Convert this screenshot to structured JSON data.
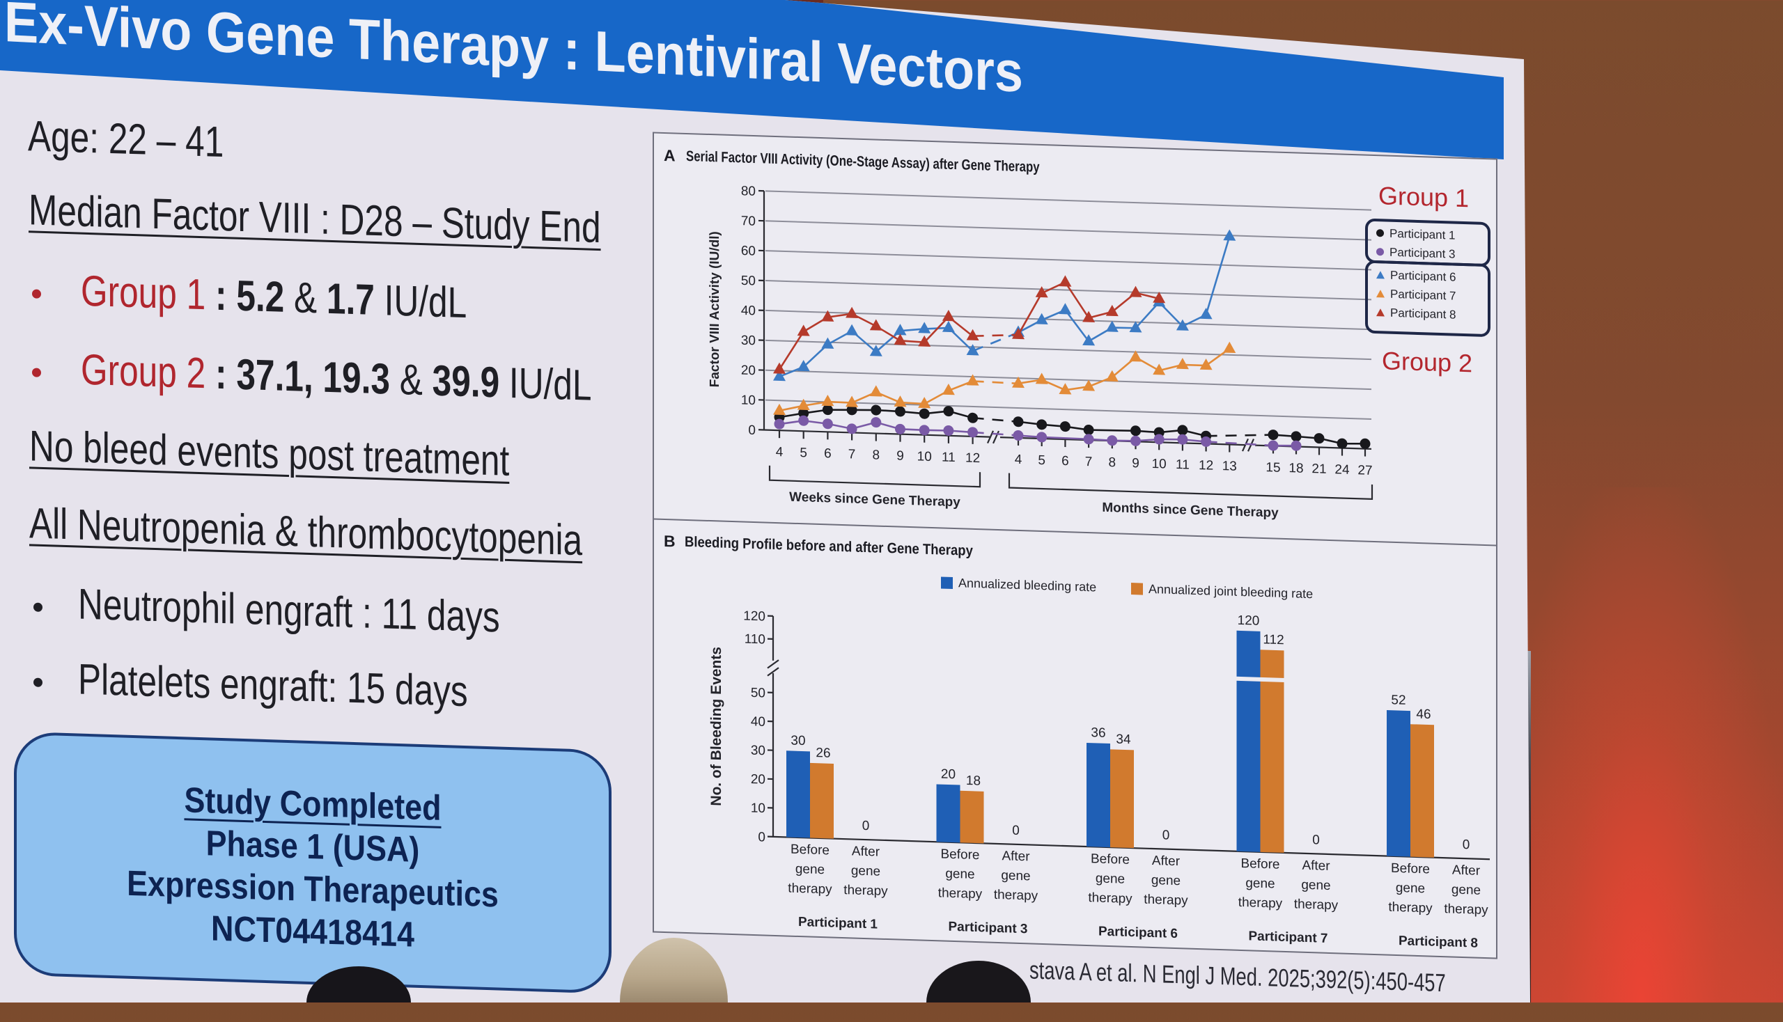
{
  "slide": {
    "title": "Ex-Vivo Gene Therapy : Lentiviral Vectors",
    "age": "Age: 22 – 41",
    "median_heading": "Median Factor VIII : D28 – Study End",
    "group1": {
      "label": "Group 1",
      "sep": " : ",
      "v1": "5.2",
      "amp": " & ",
      "v2": "1.7",
      "unit": " IU/dL"
    },
    "group2": {
      "label": "Group 2",
      "sep": " : ",
      "v1": "37.1,",
      "gap": " ",
      "v2": "19.3",
      "amp": " & ",
      "v3": "39.9",
      "unit": " IU/dL"
    },
    "no_bleed": "No bleed events post treatment",
    "cytopenia_heading": "All Neutropenia & thrombocytopenia",
    "neutrophil": "Neutrophil engraft : 11 days",
    "platelets": "Platelets engraft: 15 days",
    "status_box": {
      "line1": "Study Completed",
      "line2": "Phase 1 (USA)",
      "line3": "Expression Therapeutics",
      "line4": "NCT04418414"
    },
    "citation": "stava A et al. N Engl J Med. 2025;392(5):450-457",
    "colors": {
      "title_bar": "#1767c8",
      "group_label": "#b0262e",
      "status_box": "#8fc1ef"
    }
  },
  "chart_data": [
    {
      "type": "line",
      "panel": "A",
      "title": "Serial Factor VIII Activity (One-Stage Assay) after Gene Therapy",
      "ylabel": "Factor VIII Activity (IU/dl)",
      "ylim": [
        0,
        80
      ],
      "yticks": [
        0,
        10,
        20,
        30,
        40,
        50,
        60,
        70,
        80
      ],
      "grid": true,
      "x_weeks": [
        "4",
        "5",
        "6",
        "7",
        "8",
        "9",
        "10",
        "11",
        "12"
      ],
      "x_months": [
        "4",
        "5",
        "6",
        "7",
        "8",
        "9",
        "10",
        "11",
        "12",
        "13"
      ],
      "x_months_late": [
        "15",
        "18",
        "21",
        "24",
        "27"
      ],
      "xlabel_weeks": "Weeks since Gene Therapy",
      "xlabel_months": "Months since Gene Therapy",
      "legend_position": "right",
      "groups": [
        {
          "label": "Group 1",
          "members": [
            0,
            1
          ]
        },
        {
          "label": "Group 2",
          "members": [
            2,
            3,
            4
          ]
        }
      ],
      "series": [
        {
          "name": "Participant 1",
          "marker": "circle",
          "color": "#18181c",
          "weeks": [
            4.4,
            6.0,
            7.4,
            7.6,
            7.8,
            7.6,
            7.1,
            8.2,
            6.2
          ],
          "months": [
            5.4,
            4.7,
            4.3,
            3.4,
            null,
            3.6,
            3.3,
            4.3,
            2.6,
            null
          ],
          "months_late": [
            3.7,
            3.4,
            3.0,
            1.5,
            1.7
          ]
        },
        {
          "name": "Participant 3",
          "marker": "circle",
          "color": "#7a5aa6",
          "weeks": [
            2.1,
            3.5,
            2.7,
            1.3,
            3.7,
            1.7,
            1.6,
            1.7,
            1.4
          ],
          "months": [
            0.8,
            0.5,
            null,
            0.3,
            0.1,
            0.2,
            1.0,
            1.2,
            0.7,
            null
          ],
          "months_late": [
            0.1,
            0.3,
            null,
            null,
            null
          ]
        },
        {
          "name": "Participant 6",
          "marker": "triangle",
          "color": "#3c7bc4",
          "weeks": [
            18.0,
            21.5,
            29.3,
            34.0,
            27.3,
            34.6,
            35.5,
            36.1,
            28.6
          ],
          "months": [
            35.3,
            39.7,
            43.3,
            33.1,
            37.9,
            38.0,
            46.9,
            39.1,
            43.2,
            69.7
          ],
          "months_late": [
            null,
            null,
            null,
            null,
            null
          ]
        },
        {
          "name": "Participant 7",
          "marker": "triangle",
          "color": "#e38b38",
          "weeks": [
            6.6,
            8.5,
            10.1,
            10.0,
            13.8,
            10.6,
            10.4,
            15.1,
            18.5
          ],
          "months": [
            18.2,
            19.7,
            16.5,
            17.9,
            21.3,
            28.2,
            24.0,
            26.2,
            26.2,
            32.1
          ],
          "months_late": [
            null,
            null,
            null,
            null,
            null
          ]
        },
        {
          "name": "Participant 8",
          "marker": "triangle",
          "color": "#b53a2b",
          "weeks": [
            20.4,
            33.3,
            38.4,
            39.8,
            35.9,
            31.3,
            31.0,
            39.8,
            33.6
          ],
          "months": [
            34.5,
            48.7,
            52.6,
            40.9,
            43.2,
            49.8,
            48.1,
            null,
            null,
            null
          ],
          "months_late": [
            null,
            null,
            null,
            null,
            null
          ]
        }
      ]
    },
    {
      "type": "bar",
      "panel": "B",
      "title": "Bleeding Profile before and after Gene Therapy",
      "ylabel": "No. of Bleeding Events",
      "ylim": [
        0,
        120
      ],
      "yticks": [
        0,
        10,
        20,
        30,
        40,
        50,
        110,
        120
      ],
      "axis_break": [
        50,
        110
      ],
      "legend_position": "top",
      "categories": [
        "Participant 1",
        "Participant 3",
        "Participant 6",
        "Participant 7",
        "Participant 8"
      ],
      "subcategories": [
        [
          "Before",
          "gene",
          "therapy"
        ],
        [
          "After",
          "gene",
          "therapy"
        ]
      ],
      "series": [
        {
          "name": "Annualized bleeding rate",
          "color": "#1f5fb5",
          "before": [
            30,
            20,
            36,
            120,
            52
          ],
          "after": [
            0,
            0,
            0,
            0,
            0
          ]
        },
        {
          "name": "Annualized joint bleeding rate",
          "color": "#d17a2e",
          "before": [
            26,
            18,
            34,
            112,
            46
          ],
          "after": [
            0,
            0,
            0,
            0,
            0
          ]
        }
      ]
    }
  ]
}
